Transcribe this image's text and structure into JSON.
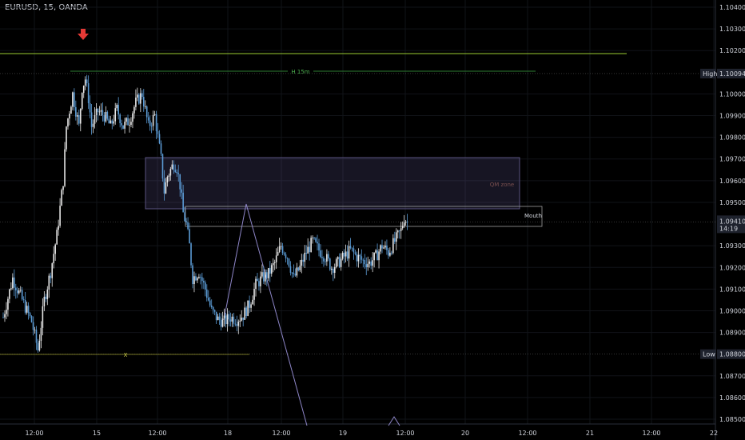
{
  "header": {
    "title": "EURUSD, 15, OANDA"
  },
  "colors": {
    "candle": "#5b9bd5",
    "zone_fill": "#6a5f9e",
    "zone_text": "#7a4f4f",
    "diagonal": "#8e86c8",
    "green_line": "#9acd32",
    "x_line": "#9a9a30",
    "arrow": "#e53935",
    "grid": "#111318",
    "axis_text": "#d1d4dc"
  },
  "chart_data": {
    "type": "candlestick",
    "title": "EURUSD, 15, OANDA",
    "ylim": [
      1.0845,
      1.1045
    ],
    "y_ticks": [
      "1.10400",
      "1.10300",
      "1.10200",
      "1.10000",
      "1.09900",
      "1.09800",
      "1.09700",
      "1.09600",
      "1.09500",
      "1.09300",
      "1.09200",
      "1.09100",
      "1.09000",
      "1.08900",
      "1.08700",
      "1.08600",
      "1.08500"
    ],
    "x_ticks": [
      "12:00",
      "15",
      "12:00",
      "18",
      "12:00",
      "19",
      "12:00",
      "20",
      "12:00",
      "21",
      "12:00",
      "22"
    ],
    "x_index_range": [
      0,
      120
    ],
    "path": [
      {
        "x": 0,
        "y": 1.0897
      },
      {
        "x": 3,
        "y": 1.0915
      },
      {
        "x": 6,
        "y": 1.0905
      },
      {
        "x": 9,
        "y": 1.0895
      },
      {
        "x": 11,
        "y": 1.0882
      },
      {
        "x": 13,
        "y": 1.0905
      },
      {
        "x": 15,
        "y": 1.0918
      },
      {
        "x": 17,
        "y": 1.0935
      },
      {
        "x": 19,
        "y": 1.096
      },
      {
        "x": 20,
        "y": 1.0985
      },
      {
        "x": 22,
        "y": 1.1
      },
      {
        "x": 24,
        "y": 1.0985
      },
      {
        "x": 25,
        "y": 1.1003
      },
      {
        "x": 26,
        "y": 1.1007
      },
      {
        "x": 27,
        "y": 1.0998
      },
      {
        "x": 28,
        "y": 1.0985
      },
      {
        "x": 30,
        "y": 1.0992
      },
      {
        "x": 32,
        "y": 1.099
      },
      {
        "x": 34,
        "y": 1.0985
      },
      {
        "x": 36,
        "y": 1.0993
      },
      {
        "x": 38,
        "y": 1.0985
      },
      {
        "x": 40,
        "y": 1.0988
      },
      {
        "x": 42,
        "y": 1.0996
      },
      {
        "x": 44,
        "y": 1.1
      },
      {
        "x": 46,
        "y": 1.0985
      },
      {
        "x": 48,
        "y": 1.099
      },
      {
        "x": 50,
        "y": 1.097
      },
      {
        "x": 51,
        "y": 1.0955
      },
      {
        "x": 52,
        "y": 1.0962
      },
      {
        "x": 54,
        "y": 1.0968
      },
      {
        "x": 55,
        "y": 1.0966
      },
      {
        "x": 56,
        "y": 1.0958
      },
      {
        "x": 57,
        "y": 1.0945
      },
      {
        "x": 58,
        "y": 1.094
      },
      {
        "x": 59,
        "y": 1.093
      },
      {
        "x": 60,
        "y": 1.0915
      },
      {
        "x": 62,
        "y": 1.0918
      },
      {
        "x": 64,
        "y": 1.091
      },
      {
        "x": 66,
        "y": 1.09
      },
      {
        "x": 68,
        "y": 1.0896
      },
      {
        "x": 70,
        "y": 1.0895
      },
      {
        "x": 72,
        "y": 1.0897
      },
      {
        "x": 74,
        "y": 1.0896
      },
      {
        "x": 76,
        "y": 1.0898
      },
      {
        "x": 78,
        "y": 1.0903
      },
      {
        "x": 80,
        "y": 1.0912
      },
      {
        "x": 82,
        "y": 1.0915
      },
      {
        "x": 84,
        "y": 1.0917
      },
      {
        "x": 86,
        "y": 1.0922
      },
      {
        "x": 88,
        "y": 1.093
      },
      {
        "x": 90,
        "y": 1.0925
      },
      {
        "x": 92,
        "y": 1.0915
      },
      {
        "x": 94,
        "y": 1.092
      },
      {
        "x": 96,
        "y": 1.0927
      },
      {
        "x": 98,
        "y": 1.0932
      },
      {
        "x": 100,
        "y": 1.0928
      },
      {
        "x": 102,
        "y": 1.0925
      },
      {
        "x": 104,
        "y": 1.092
      },
      {
        "x": 106,
        "y": 1.0922
      },
      {
        "x": 108,
        "y": 1.0925
      },
      {
        "x": 110,
        "y": 1.0928
      },
      {
        "x": 112,
        "y": 1.0925
      },
      {
        "x": 114,
        "y": 1.0923
      },
      {
        "x": 116,
        "y": 1.0922
      },
      {
        "x": 118,
        "y": 1.0925
      },
      {
        "x": 120,
        "y": 1.093
      },
      {
        "x": 122,
        "y": 1.0927
      },
      {
        "x": 124,
        "y": 1.0932
      },
      {
        "x": 126,
        "y": 1.0937
      },
      {
        "x": 127,
        "y": 1.0943
      },
      {
        "x": 128,
        "y": 1.0941
      }
    ],
    "levels": {
      "high": {
        "label": "High",
        "value": "1.10094"
      },
      "low": {
        "label": "Low",
        "value": "1.08800"
      },
      "current": {
        "value": "1.09410",
        "countdown": "14:19"
      }
    },
    "annotations": {
      "h15m": "H 15m",
      "qm_zone": "QM zone",
      "mouth": "Mouth",
      "x_mark": "X"
    }
  }
}
